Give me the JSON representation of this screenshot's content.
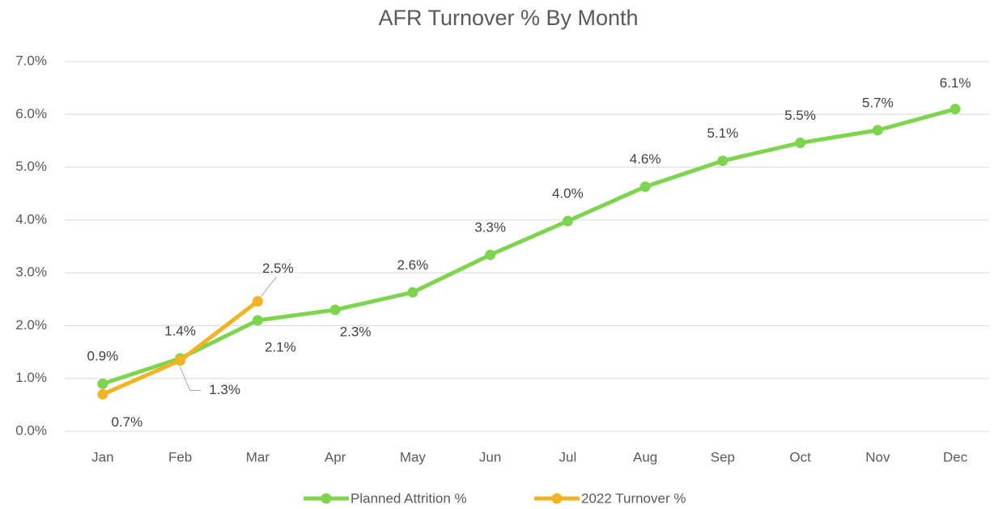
{
  "chart_data": {
    "type": "line",
    "title": "AFR Turnover % By Month",
    "categories": [
      "Jan",
      "Feb",
      "Mar",
      "Apr",
      "May",
      "Jun",
      "Jul",
      "Aug",
      "Sep",
      "Oct",
      "Nov",
      "Dec"
    ],
    "series": [
      {
        "name": "Planned Attrition %",
        "color": "#7ed44f",
        "values": [
          0.9,
          1.38,
          2.1,
          2.3,
          2.63,
          3.34,
          3.98,
          4.63,
          5.12,
          5.46,
          5.7,
          6.1
        ],
        "value_labels": [
          "0.9%",
          "1.4%",
          "2.1%",
          "2.3%",
          "2.6%",
          "3.3%",
          "4.0%",
          "4.6%",
          "5.1%",
          "5.5%",
          "5.7%",
          "6.1%"
        ]
      },
      {
        "name": "2022 Turnover %",
        "color": "#f0b323",
        "values": [
          0.7,
          1.34,
          2.46,
          null,
          null,
          null,
          null,
          null,
          null,
          null,
          null,
          null
        ],
        "value_labels": [
          "0.7%",
          "1.3%",
          "2.5%",
          null,
          null,
          null,
          null,
          null,
          null,
          null,
          null,
          null
        ]
      }
    ],
    "ylim": [
      0,
      7
    ],
    "yticks": [
      {
        "value": 0,
        "label": "0.0%"
      },
      {
        "value": 1,
        "label": "1.0%"
      },
      {
        "value": 2,
        "label": "2.0%"
      },
      {
        "value": 3,
        "label": "3.0%"
      },
      {
        "value": 4,
        "label": "4.0%"
      },
      {
        "value": 5,
        "label": "5.0%"
      },
      {
        "value": 6,
        "label": "6.0%"
      },
      {
        "value": 7,
        "label": "7.0%"
      }
    ],
    "grid": true,
    "legend": "bottom"
  }
}
